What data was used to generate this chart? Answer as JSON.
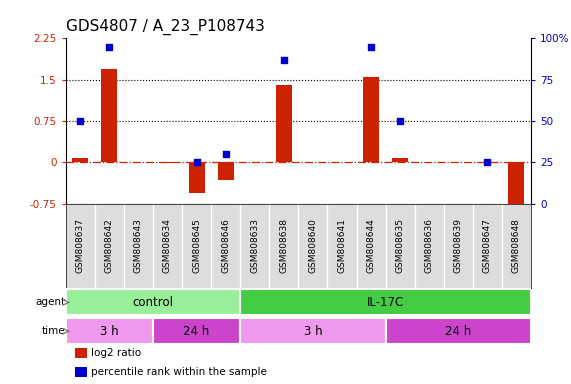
{
  "title": "GDS4807 / A_23_P108743",
  "samples": [
    "GSM808637",
    "GSM808642",
    "GSM808643",
    "GSM808634",
    "GSM808645",
    "GSM808646",
    "GSM808633",
    "GSM808638",
    "GSM808640",
    "GSM808641",
    "GSM808644",
    "GSM808635",
    "GSM808636",
    "GSM808639",
    "GSM808647",
    "GSM808648"
  ],
  "log2_ratio": [
    0.07,
    1.7,
    0.0,
    -0.02,
    -0.55,
    -0.32,
    0.0,
    1.4,
    0.0,
    0.0,
    1.55,
    0.08,
    0.0,
    0.0,
    -0.02,
    -0.9
  ],
  "percentile": [
    50,
    95,
    null,
    null,
    25,
    30,
    null,
    87,
    null,
    null,
    95,
    50,
    null,
    null,
    25,
    null
  ],
  "ylim": [
    -0.75,
    2.25
  ],
  "yticks_left": [
    -0.75,
    0.0,
    0.75,
    1.5,
    2.25
  ],
  "ytick_labels_left": [
    "-0.75",
    "0",
    "0.75",
    "1.5",
    "2.25"
  ],
  "yticks_right": [
    0,
    25,
    50,
    75,
    100
  ],
  "ytick_labels_right": [
    "0",
    "25",
    "50",
    "75",
    "100%"
  ],
  "hlines": [
    0.75,
    1.5
  ],
  "bar_color": "#cc2200",
  "dot_color": "#0000cc",
  "dashed_line_color": "#cc2200",
  "agent_groups": [
    {
      "label": "control",
      "start": 0,
      "end": 6,
      "color": "#99ee99"
    },
    {
      "label": "IL-17C",
      "start": 6,
      "end": 16,
      "color": "#44cc44"
    }
  ],
  "time_groups": [
    {
      "label": "3 h",
      "start": 0,
      "end": 3,
      "color": "#ee99ee"
    },
    {
      "label": "24 h",
      "start": 3,
      "end": 6,
      "color": "#cc44cc"
    },
    {
      "label": "3 h",
      "start": 6,
      "end": 11,
      "color": "#ee99ee"
    },
    {
      "label": "24 h",
      "start": 11,
      "end": 16,
      "color": "#cc44cc"
    }
  ],
  "legend_items": [
    {
      "label": "log2 ratio",
      "color": "#cc2200"
    },
    {
      "label": "percentile rank within the sample",
      "color": "#0000cc"
    }
  ],
  "bg_color": "#ffffff",
  "plot_bg_color": "#ffffff",
  "sample_bg_color": "#dddddd",
  "title_fontsize": 11,
  "tick_fontsize": 7.5,
  "bar_width": 0.55
}
